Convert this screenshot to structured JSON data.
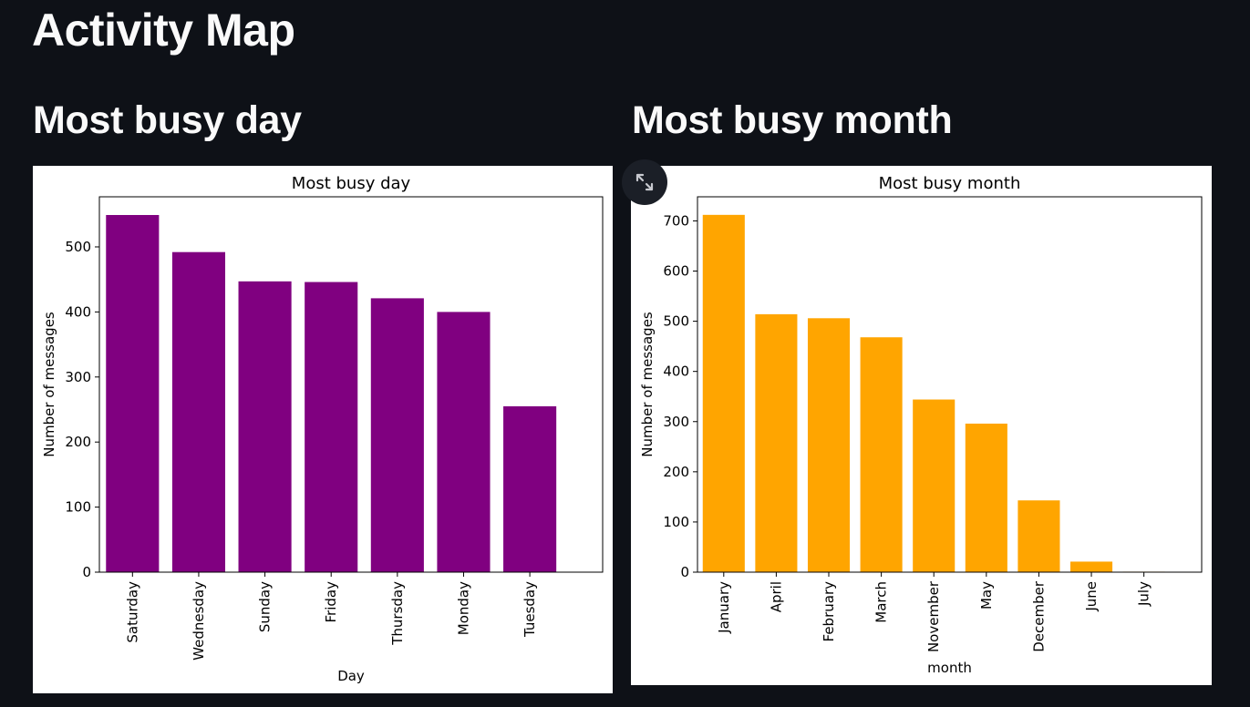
{
  "page": {
    "title": "Activity Map"
  },
  "sections": {
    "day": {
      "heading": "Most busy day"
    },
    "month": {
      "heading": "Most busy month"
    }
  },
  "fullscreen_button": {
    "icon": "expand-icon"
  },
  "chart_data": [
    {
      "type": "bar",
      "title": "Most busy day",
      "xlabel": "Day",
      "ylabel": "Number of messages",
      "categories": [
        "Saturday",
        "Wednesday",
        "Sunday",
        "Friday",
        "Thursday",
        "Monday",
        "Tuesday"
      ],
      "values": [
        549,
        492,
        447,
        446,
        421,
        400,
        255
      ],
      "ylim": [
        0,
        577
      ],
      "yticks": [
        0,
        100,
        200,
        300,
        400,
        500
      ],
      "color": "#800080",
      "grid": false
    },
    {
      "type": "bar",
      "title": "Most busy month",
      "xlabel": "month",
      "ylabel": "Number of messages",
      "categories": [
        "January",
        "April",
        "February",
        "March",
        "November",
        "May",
        "December",
        "June",
        "July"
      ],
      "values": [
        712,
        514,
        506,
        468,
        344,
        296,
        143,
        21,
        1
      ],
      "ylim": [
        0,
        748
      ],
      "yticks": [
        0,
        100,
        200,
        300,
        400,
        500,
        600,
        700
      ],
      "color": "#ffa500",
      "grid": false
    }
  ]
}
